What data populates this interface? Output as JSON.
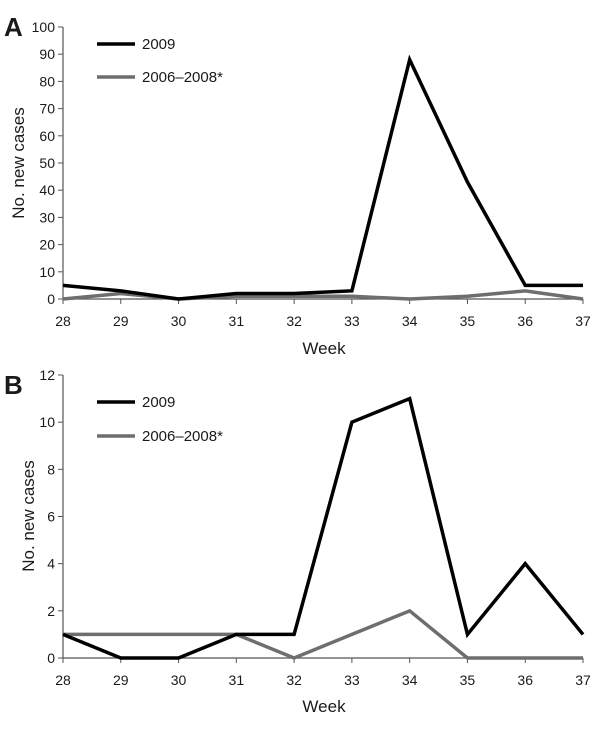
{
  "colors": {
    "series_2009": "#000000",
    "series_2006_2008": "#6e6e6e",
    "axis": "#555555"
  },
  "chart_data": [
    {
      "panel_label": "A",
      "type": "line",
      "xlabel": "Week",
      "ylabel": "No. new cases",
      "x": [
        28,
        29,
        30,
        31,
        32,
        33,
        34,
        35,
        36,
        37
      ],
      "x_tick_labels": [
        "28",
        "29",
        "30",
        "31",
        "32",
        "33",
        "34",
        "35",
        "36",
        "37"
      ],
      "ylim": [
        0,
        100
      ],
      "y_ticks": [
        0,
        10,
        20,
        30,
        40,
        50,
        60,
        70,
        80,
        90,
        100
      ],
      "y_tick_labels": [
        "0",
        "10",
        "20",
        "30",
        "40",
        "50",
        "60",
        "70",
        "80",
        "90",
        "100"
      ],
      "grid": false,
      "legend_position": "top-left",
      "series": [
        {
          "name": "2009",
          "values": [
            5,
            3,
            0,
            2,
            2,
            3,
            88,
            43,
            5,
            5
          ]
        },
        {
          "name": "2006–2008*",
          "values": [
            0,
            2,
            0,
            1,
            1,
            1,
            0,
            1,
            3,
            0
          ]
        }
      ]
    },
    {
      "panel_label": "B",
      "type": "line",
      "xlabel": "Week",
      "ylabel": "No. new cases",
      "x": [
        28,
        29,
        30,
        31,
        32,
        33,
        34,
        35,
        36,
        37
      ],
      "x_tick_labels": [
        "28",
        "29",
        "30",
        "31",
        "32",
        "33",
        "34",
        "35",
        "36",
        "37"
      ],
      "ylim": [
        0,
        12
      ],
      "y_ticks": [
        0,
        2,
        4,
        6,
        8,
        10,
        12
      ],
      "y_tick_labels": [
        "0",
        "2",
        "4",
        "6",
        "8",
        "10",
        "12"
      ],
      "grid": false,
      "legend_position": "top-left",
      "series": [
        {
          "name": "2009",
          "values": [
            1,
            0,
            0,
            1,
            1,
            10,
            11,
            1,
            4,
            1
          ]
        },
        {
          "name": "2006–2008*",
          "values": [
            1,
            1,
            1,
            1,
            0,
            1,
            2,
            0,
            0,
            0
          ]
        }
      ]
    }
  ]
}
